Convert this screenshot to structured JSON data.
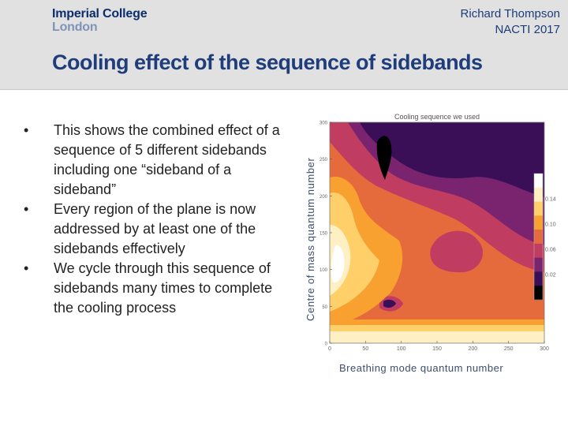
{
  "header": {
    "logo_line1": "Imperial College",
    "logo_line2": "London",
    "author": "Richard Thompson",
    "event": "NACTI 2017",
    "title": "Cooling effect of the sequence of sidebands"
  },
  "bullets": [
    "This shows the combined effect of a sequence of 5 different sidebands including one “sideband of a sideband”",
    "Every region of the plane is now addressed by at least one of the sidebands effectively",
    "We cycle through this sequence of sidebands many times to complete the cooling process"
  ],
  "bullet_marker": "•",
  "figure": {
    "ylabel": "Centre of mass quantum number",
    "xlabel": "Breathing mode quantum number"
  },
  "chart_data": {
    "type": "heatmap",
    "title": "Cooling sequence we used",
    "x_ticks": [
      "0",
      "50",
      "100",
      "150",
      "200",
      "250",
      "300"
    ],
    "y_ticks": [
      "0",
      "50",
      "100",
      "150",
      "200",
      "250",
      "300"
    ],
    "xlim": [
      0,
      300
    ],
    "ylim": [
      0,
      300
    ],
    "colorbar_ticks": [
      "0.14",
      "0.10",
      "0.06",
      "0.02"
    ],
    "colorbar_colors": [
      "#ffffff",
      "#fff0c4",
      "#ffd06a",
      "#f8a030",
      "#e56a3c",
      "#c03c60",
      "#7a2470",
      "#3a0f58",
      "#000000"
    ]
  }
}
